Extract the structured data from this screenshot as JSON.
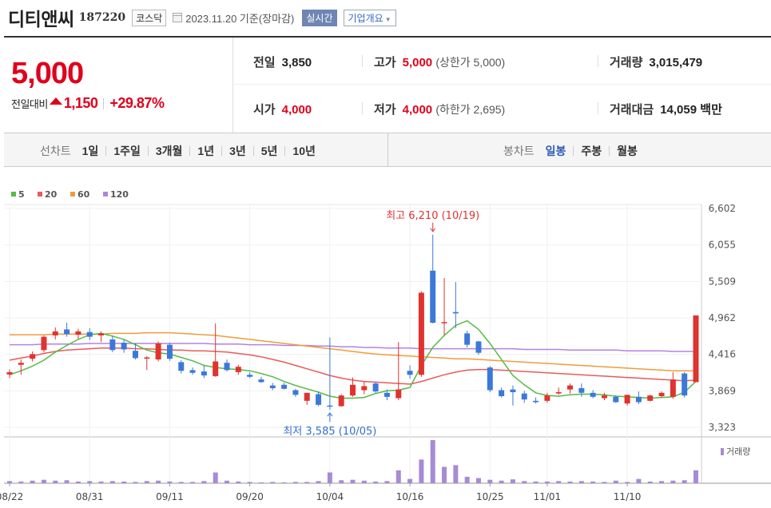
{
  "header": {
    "name": "디티앤씨",
    "code": "187220",
    "market": "코스닥",
    "date_text": "2023.11.20  기준(장마감)",
    "realtime_label": "실시간",
    "company_info_label": "기업개요"
  },
  "price": {
    "current": "5,000",
    "change_label": "전일대비",
    "change_amount": "1,150",
    "change_pct": "+29.87%"
  },
  "stats": {
    "prev_close": {
      "label": "전일",
      "value": "3,850"
    },
    "high": {
      "label": "고가",
      "value": "5,000",
      "sub": "(상한가 5,000)"
    },
    "volume": {
      "label": "거래량",
      "value": "3,015,479"
    },
    "open": {
      "label": "시가",
      "value": "4,000"
    },
    "low": {
      "label": "저가",
      "value": "4,000",
      "sub": "(하한가 2,695)"
    },
    "amount": {
      "label": "거래대금",
      "value": "14,059",
      "unit": "백만"
    }
  },
  "periods": {
    "line_title": "선차트",
    "line_items": [
      "1일",
      "1주일",
      "3개월",
      "1년",
      "3년",
      "5년",
      "10년"
    ],
    "candle_title": "봉차트",
    "candle_items": [
      "일봉",
      "주봉",
      "월봉"
    ],
    "active_candle": "일봉"
  },
  "colors": {
    "up": "#e0332f",
    "down": "#3b79d9",
    "ma5": "#55bb44",
    "ma20": "#ea5a5a",
    "ma60": "#f39a3c",
    "ma120": "#b382e0",
    "volume": "#a68bd6"
  },
  "chart_data": {
    "type": "candlestick",
    "ylim": [
      3323,
      6602
    ],
    "yticks": [
      "6,602",
      "6,055",
      "5,509",
      "4,962",
      "4,416",
      "3,869",
      "3,323"
    ],
    "xtick_labels": [
      {
        "i": 0,
        "label": "08/22"
      },
      {
        "i": 7,
        "label": "08/31"
      },
      {
        "i": 14,
        "label": "09/11"
      },
      {
        "i": 21,
        "label": "09/20"
      },
      {
        "i": 28,
        "label": "10/04"
      },
      {
        "i": 35,
        "label": "10/16"
      },
      {
        "i": 42,
        "label": "10/25"
      },
      {
        "i": 47,
        "label": "11/01"
      },
      {
        "i": 54,
        "label": "11/10"
      }
    ],
    "legend": [
      {
        "name": "5",
        "color": "#55bb44"
      },
      {
        "name": "20",
        "color": "#ea5a5a"
      },
      {
        "name": "60",
        "color": "#f39a3c"
      },
      {
        "name": "120",
        "color": "#b382e0"
      }
    ],
    "volume_label": "거래량",
    "annotations": {
      "high": {
        "i": 37,
        "price": 6210,
        "text": "최고 6,210 (10/19)"
      },
      "low": {
        "i": 28,
        "price": 3585,
        "text": "최저 3,585 (10/05)"
      }
    },
    "candles": [
      {
        "o": 4115,
        "h": 4190,
        "l": 4060,
        "c": 4150
      },
      {
        "o": 4260,
        "h": 4340,
        "l": 4110,
        "c": 4290
      },
      {
        "o": 4350,
        "h": 4460,
        "l": 4310,
        "c": 4420
      },
      {
        "o": 4480,
        "h": 4700,
        "l": 4450,
        "c": 4680
      },
      {
        "o": 4700,
        "h": 4820,
        "l": 4640,
        "c": 4760
      },
      {
        "o": 4790,
        "h": 4890,
        "l": 4680,
        "c": 4720
      },
      {
        "o": 4710,
        "h": 4800,
        "l": 4650,
        "c": 4760
      },
      {
        "o": 4750,
        "h": 4810,
        "l": 4630,
        "c": 4680
      },
      {
        "o": 4700,
        "h": 4760,
        "l": 4600,
        "c": 4730
      },
      {
        "o": 4640,
        "h": 4700,
        "l": 4450,
        "c": 4480
      },
      {
        "o": 4590,
        "h": 4640,
        "l": 4440,
        "c": 4490
      },
      {
        "o": 4470,
        "h": 4580,
        "l": 4340,
        "c": 4360
      },
      {
        "o": 4360,
        "h": 4390,
        "l": 4180,
        "c": 4370
      },
      {
        "o": 4340,
        "h": 4610,
        "l": 4310,
        "c": 4580
      },
      {
        "o": 4560,
        "h": 4590,
        "l": 4320,
        "c": 4350
      },
      {
        "o": 4300,
        "h": 4330,
        "l": 4130,
        "c": 4170
      },
      {
        "o": 4180,
        "h": 4220,
        "l": 4110,
        "c": 4140
      },
      {
        "o": 4160,
        "h": 4250,
        "l": 4060,
        "c": 4100
      },
      {
        "o": 4090,
        "h": 4880,
        "l": 4080,
        "c": 4310
      },
      {
        "o": 4290,
        "h": 4340,
        "l": 4160,
        "c": 4180
      },
      {
        "o": 4150,
        "h": 4260,
        "l": 4110,
        "c": 4230
      },
      {
        "o": 4110,
        "h": 4150,
        "l": 4060,
        "c": 4080
      },
      {
        "o": 4040,
        "h": 4080,
        "l": 3990,
        "c": 4000
      },
      {
        "o": 3950,
        "h": 3990,
        "l": 3880,
        "c": 3910
      },
      {
        "o": 3960,
        "h": 3990,
        "l": 3890,
        "c": 3900
      },
      {
        "o": 3880,
        "h": 3900,
        "l": 3780,
        "c": 3810
      },
      {
        "o": 3720,
        "h": 3840,
        "l": 3660,
        "c": 3840
      },
      {
        "o": 3820,
        "h": 3860,
        "l": 3640,
        "c": 3660
      },
      {
        "o": 3650,
        "h": 4670,
        "l": 3585,
        "c": 3640
      },
      {
        "o": 3640,
        "h": 3820,
        "l": 3630,
        "c": 3800
      },
      {
        "o": 3800,
        "h": 4070,
        "l": 3780,
        "c": 3960
      },
      {
        "o": 3880,
        "h": 4010,
        "l": 3820,
        "c": 3940
      },
      {
        "o": 3980,
        "h": 4000,
        "l": 3840,
        "c": 3860
      },
      {
        "o": 3840,
        "h": 3890,
        "l": 3730,
        "c": 3780
      },
      {
        "o": 3760,
        "h": 4600,
        "l": 3730,
        "c": 3890
      },
      {
        "o": 4170,
        "h": 4250,
        "l": 4050,
        "c": 4110
      },
      {
        "o": 4110,
        "h": 5360,
        "l": 4080,
        "c": 5340
      },
      {
        "o": 5670,
        "h": 6210,
        "l": 4880,
        "c": 4890
      },
      {
        "o": 4890,
        "h": 5560,
        "l": 4700,
        "c": 4900
      },
      {
        "o": 5050,
        "h": 5500,
        "l": 4810,
        "c": 5030
      },
      {
        "o": 4730,
        "h": 4770,
        "l": 4520,
        "c": 4560
      },
      {
        "o": 4610,
        "h": 4620,
        "l": 4410,
        "c": 4440
      },
      {
        "o": 4220,
        "h": 4240,
        "l": 3850,
        "c": 3880
      },
      {
        "o": 3880,
        "h": 3920,
        "l": 3770,
        "c": 3790
      },
      {
        "o": 3890,
        "h": 3950,
        "l": 3650,
        "c": 3850
      },
      {
        "o": 3830,
        "h": 3870,
        "l": 3690,
        "c": 3740
      },
      {
        "o": 3720,
        "h": 3770,
        "l": 3680,
        "c": 3700
      },
      {
        "o": 3720,
        "h": 3840,
        "l": 3690,
        "c": 3800
      },
      {
        "o": 3830,
        "h": 3920,
        "l": 3810,
        "c": 3850
      },
      {
        "o": 3890,
        "h": 3980,
        "l": 3830,
        "c": 3950
      },
      {
        "o": 3910,
        "h": 3980,
        "l": 3780,
        "c": 3840
      },
      {
        "o": 3840,
        "h": 3880,
        "l": 3760,
        "c": 3780
      },
      {
        "o": 3760,
        "h": 3840,
        "l": 3730,
        "c": 3800
      },
      {
        "o": 3780,
        "h": 3800,
        "l": 3690,
        "c": 3700
      },
      {
        "o": 3680,
        "h": 3810,
        "l": 3650,
        "c": 3810
      },
      {
        "o": 3780,
        "h": 3860,
        "l": 3670,
        "c": 3700
      },
      {
        "o": 3720,
        "h": 3810,
        "l": 3710,
        "c": 3800
      },
      {
        "o": 3790,
        "h": 3860,
        "l": 3770,
        "c": 3840
      },
      {
        "o": 3780,
        "h": 4150,
        "l": 3750,
        "c": 4040
      },
      {
        "o": 4130,
        "h": 4150,
        "l": 3770,
        "c": 3800
      },
      {
        "o": 4000,
        "h": 5000,
        "l": 4000,
        "c": 5000
      }
    ],
    "volumes": [
      0.05,
      0.04,
      0.06,
      0.08,
      0.06,
      0.07,
      0.04,
      0.05,
      0.04,
      0.05,
      0.04,
      0.03,
      0.05,
      0.06,
      0.04,
      0.03,
      0.03,
      0.05,
      0.25,
      0.06,
      0.04,
      0.03,
      0.02,
      0.03,
      0.02,
      0.03,
      0.03,
      0.05,
      0.25,
      0.07,
      0.08,
      0.06,
      0.04,
      0.05,
      0.3,
      0.1,
      0.55,
      1.0,
      0.38,
      0.42,
      0.15,
      0.12,
      0.08,
      0.06,
      0.09,
      0.05,
      0.04,
      0.04,
      0.05,
      0.04,
      0.05,
      0.04,
      0.03,
      0.06,
      0.03,
      0.1,
      0.04,
      0.05,
      0.06,
      0.07,
      0.3
    ],
    "ma5": [
      4110,
      4170,
      4240,
      4330,
      4450,
      4550,
      4640,
      4710,
      4730,
      4690,
      4640,
      4560,
      4480,
      4440,
      4420,
      4370,
      4320,
      4250,
      4220,
      4200,
      4190,
      4170,
      4130,
      4080,
      4010,
      3950,
      3900,
      3850,
      3790,
      3760,
      3760,
      3770,
      3830,
      3870,
      3880,
      3920,
      4250,
      4520,
      4700,
      4850,
      4920,
      4790,
      4580,
      4340,
      4100,
      3960,
      3840,
      3800,
      3790,
      3810,
      3820,
      3820,
      3810,
      3790,
      3780,
      3770,
      3760,
      3770,
      3780,
      3850,
      4010
    ],
    "ma20": [
      4330,
      4360,
      4390,
      4430,
      4460,
      4480,
      4490,
      4500,
      4510,
      4510,
      4510,
      4500,
      4500,
      4490,
      4480,
      4480,
      4470,
      4470,
      4460,
      4450,
      4430,
      4410,
      4380,
      4340,
      4300,
      4250,
      4200,
      4150,
      4100,
      4060,
      4030,
      4010,
      4000,
      3990,
      3980,
      3970,
      4010,
      4060,
      4110,
      4150,
      4180,
      4190,
      4190,
      4180,
      4170,
      4160,
      4150,
      4140,
      4130,
      4120,
      4110,
      4100,
      4090,
      4080,
      4070,
      4060,
      4050,
      4040,
      4030,
      4020,
      4030
    ],
    "ma60": [
      4710,
      4710,
      4710,
      4710,
      4720,
      4720,
      4720,
      4720,
      4720,
      4730,
      4730,
      4730,
      4740,
      4740,
      4740,
      4730,
      4720,
      4710,
      4700,
      4680,
      4660,
      4640,
      4620,
      4600,
      4580,
      4560,
      4540,
      4520,
      4500,
      4480,
      4460,
      4440,
      4420,
      4410,
      4400,
      4390,
      4380,
      4370,
      4360,
      4350,
      4350,
      4340,
      4330,
      4320,
      4310,
      4300,
      4290,
      4280,
      4270,
      4260,
      4250,
      4240,
      4230,
      4220,
      4210,
      4200,
      4190,
      4180,
      4170,
      4170,
      4170
    ],
    "ma120": [
      4560,
      4560,
      4560,
      4570,
      4570,
      4570,
      4570,
      4580,
      4580,
      4580,
      4580,
      4580,
      4580,
      4580,
      4580,
      4580,
      4580,
      4580,
      4570,
      4570,
      4570,
      4560,
      4560,
      4560,
      4550,
      4550,
      4550,
      4540,
      4540,
      4530,
      4530,
      4520,
      4520,
      4510,
      4510,
      4510,
      4500,
      4500,
      4500,
      4500,
      4500,
      4500,
      4500,
      4500,
      4500,
      4490,
      4490,
      4490,
      4490,
      4480,
      4480,
      4480,
      4480,
      4480,
      4470,
      4470,
      4470,
      4470,
      4460,
      4460,
      4460
    ]
  }
}
